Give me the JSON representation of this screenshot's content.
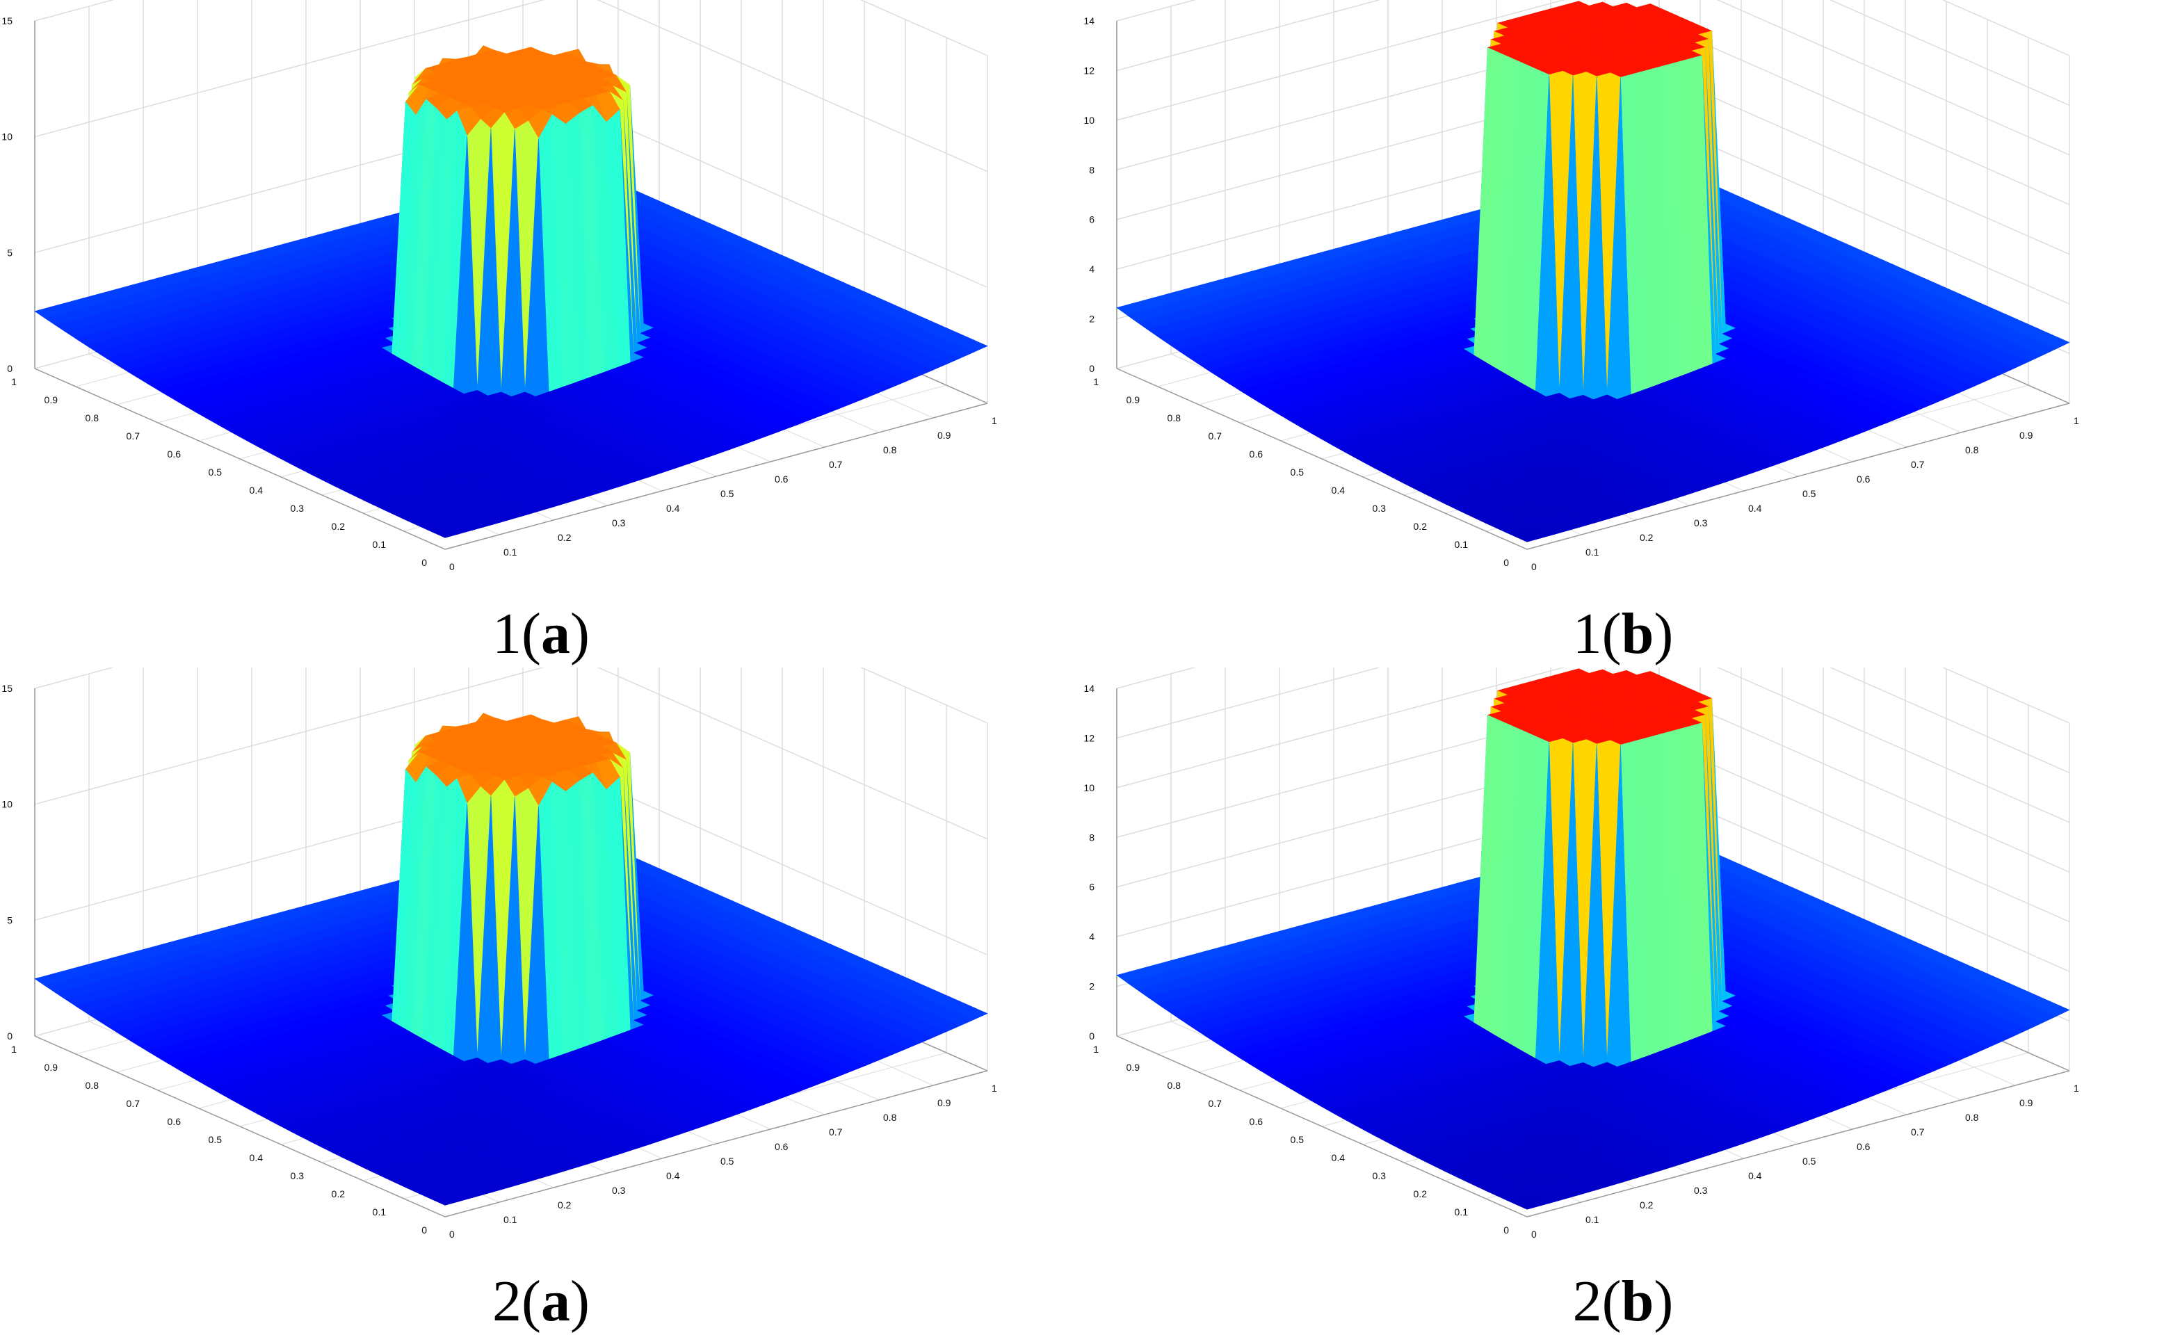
{
  "chart_data": [
    {
      "type": "surface3d",
      "caption": {
        "num": "1(",
        "letter": "a",
        "close": ")"
      },
      "zticks": [
        "0",
        "5",
        "10",
        "15"
      ],
      "zlim": [
        0,
        15
      ],
      "xticks": [
        "0",
        "0.1",
        "0.2",
        "0.3",
        "0.4",
        "0.5",
        "0.6",
        "0.7",
        "0.8",
        "0.9",
        "1"
      ],
      "yticks": [
        "0",
        "0.1",
        "0.2",
        "0.3",
        "0.4",
        "0.5",
        "0.6",
        "0.7",
        "0.8",
        "0.9",
        "1"
      ],
      "xlim": [
        0,
        1
      ],
      "ylim": [
        0,
        1
      ],
      "peak": 12.5,
      "corner_value": 2.6,
      "base_value": 0.5,
      "oscillating_top": true,
      "colormap": "jet",
      "grid": true
    },
    {
      "type": "surface3d",
      "caption": {
        "num": "1(",
        "letter": "b",
        "close": ")"
      },
      "zticks": [
        "0",
        "2",
        "4",
        "6",
        "8",
        "10",
        "12",
        "14"
      ],
      "zlim": [
        0,
        14
      ],
      "xticks": [
        "0",
        "0.1",
        "0.2",
        "0.3",
        "0.4",
        "0.5",
        "0.6",
        "0.7",
        "0.8",
        "0.9",
        "1"
      ],
      "yticks": [
        "0",
        "0.1",
        "0.2",
        "0.3",
        "0.4",
        "0.5",
        "0.6",
        "0.7",
        "0.8",
        "0.9",
        "1"
      ],
      "xlim": [
        0,
        1
      ],
      "ylim": [
        0,
        1
      ],
      "peak": 13.3,
      "corner_value": 2.6,
      "base_value": 0.3,
      "oscillating_top": false,
      "colormap": "jet",
      "grid": true
    },
    {
      "type": "surface3d",
      "caption": {
        "num": "2(",
        "letter": "a",
        "close": ")"
      },
      "zticks": [
        "0",
        "5",
        "10",
        "15"
      ],
      "zlim": [
        0,
        15
      ],
      "xticks": [
        "0",
        "0.1",
        "0.2",
        "0.3",
        "0.4",
        "0.5",
        "0.6",
        "0.7",
        "0.8",
        "0.9",
        "1"
      ],
      "yticks": [
        "0",
        "0.1",
        "0.2",
        "0.3",
        "0.4",
        "0.5",
        "0.6",
        "0.7",
        "0.8",
        "0.9",
        "1"
      ],
      "xlim": [
        0,
        1
      ],
      "ylim": [
        0,
        1
      ],
      "peak": 12.5,
      "corner_value": 2.6,
      "base_value": 0.5,
      "oscillating_top": true,
      "colormap": "jet",
      "grid": true
    },
    {
      "type": "surface3d",
      "caption": {
        "num": "2(",
        "letter": "b",
        "close": ")"
      },
      "zticks": [
        "0",
        "2",
        "4",
        "6",
        "8",
        "10",
        "12",
        "14"
      ],
      "zlim": [
        0,
        14
      ],
      "xticks": [
        "0",
        "0.1",
        "0.2",
        "0.3",
        "0.4",
        "0.5",
        "0.6",
        "0.7",
        "0.8",
        "0.9",
        "1"
      ],
      "yticks": [
        "0",
        "0.1",
        "0.2",
        "0.3",
        "0.4",
        "0.5",
        "0.6",
        "0.7",
        "0.8",
        "0.9",
        "1"
      ],
      "xlim": [
        0,
        1
      ],
      "ylim": [
        0,
        1
      ],
      "peak": 13.3,
      "corner_value": 2.6,
      "base_value": 0.3,
      "oscillating_top": false,
      "colormap": "jet",
      "grid": true
    }
  ],
  "colors": {
    "jet_low": "#00008f",
    "jet_blue": "#0000ff",
    "jet_cyan": "#00ffff",
    "jet_yellow": "#ffff00",
    "jet_red": "#ff0000",
    "jet_high": "#800000",
    "grid": "#dddddd",
    "axis": "#999999"
  }
}
